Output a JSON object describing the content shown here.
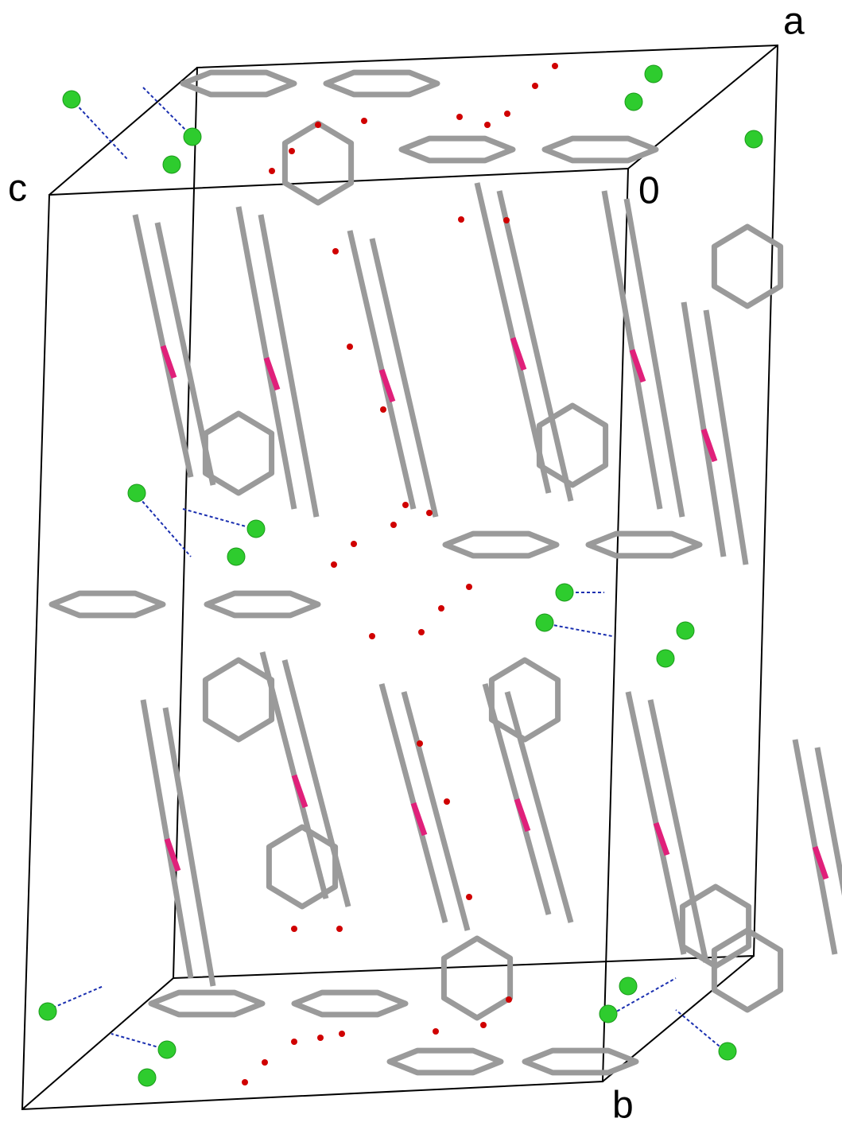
{
  "axis_labels": {
    "a": "a",
    "c": "c",
    "origin": "0",
    "b": "b"
  }
}
